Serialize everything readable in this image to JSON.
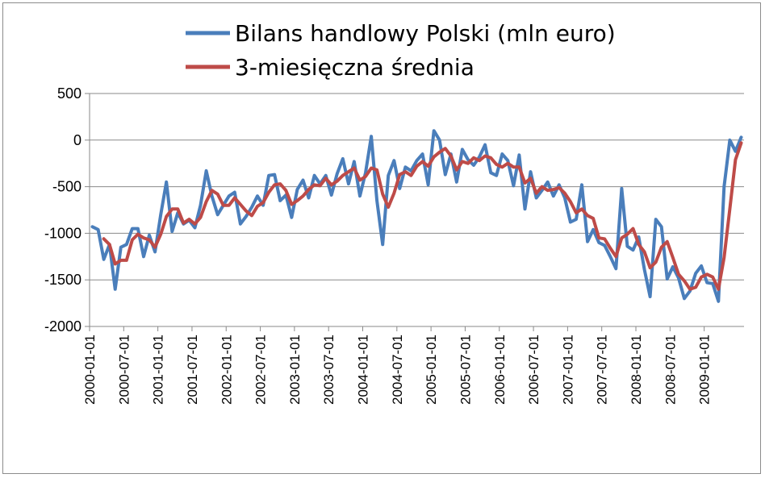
{
  "chart_data": {
    "type": "line",
    "title": "",
    "xlabel": "",
    "ylabel": "",
    "ylim": [
      -2000,
      500
    ],
    "y_ticks": [
      500,
      0,
      -500,
      -1000,
      -1500,
      -2000
    ],
    "y_tick_labels": [
      "500",
      "0",
      "-500",
      "-1000",
      "-1500",
      "-2000"
    ],
    "x_tick_labels": [
      "2000-01-01",
      "2000-07-01",
      "2001-01-01",
      "2001-07-01",
      "2002-01-01",
      "2002-07-01",
      "2003-01-01",
      "2003-07-01",
      "2004-01-01",
      "2004-07-01",
      "2005-01-01",
      "2005-07-01",
      "2006-01-01",
      "2006-07-01",
      "2007-01-01",
      "2007-07-01",
      "2008-01-01",
      "2008-07-01",
      "2009-01-01"
    ],
    "x_start": "2000-01",
    "x_frequency": "monthly",
    "grid": true,
    "legend_position": "top",
    "series": [
      {
        "name": "Bilans handlowy Polski (mln euro)",
        "color": "#4a7ebb",
        "values": [
          -930,
          -960,
          -1280,
          -1120,
          -1600,
          -1150,
          -1120,
          -950,
          -950,
          -1250,
          -1020,
          -1200,
          -800,
          -450,
          -980,
          -780,
          -900,
          -860,
          -940,
          -700,
          -330,
          -600,
          -800,
          -700,
          -600,
          -560,
          -900,
          -820,
          -720,
          -600,
          -700,
          -380,
          -370,
          -650,
          -590,
          -830,
          -530,
          -430,
          -620,
          -380,
          -470,
          -380,
          -590,
          -360,
          -200,
          -470,
          -230,
          -600,
          -350,
          40,
          -650,
          -1120,
          -380,
          -220,
          -520,
          -290,
          -330,
          -220,
          -150,
          -480,
          100,
          0,
          -370,
          -150,
          -450,
          -100,
          -210,
          -270,
          -180,
          -50,
          -350,
          -380,
          -150,
          -220,
          -490,
          -160,
          -740,
          -340,
          -620,
          -540,
          -450,
          -600,
          -480,
          -620,
          -880,
          -850,
          -480,
          -1090,
          -960,
          -1100,
          -1130,
          -1250,
          -1380,
          -520,
          -1140,
          -1180,
          -1040,
          -1390,
          -1680,
          -850,
          -930,
          -1490,
          -1360,
          -1480,
          -1700,
          -1620,
          -1430,
          -1350,
          -1530,
          -1540,
          -1730,
          -500,
          0,
          -120,
          30
        ]
      },
      {
        "name": "3-miesięczna średnia",
        "color": "#be4b48",
        "values": [
          null,
          null,
          -1060,
          -1120,
          -1330,
          -1290,
          -1290,
          -1070,
          -1010,
          -1050,
          -1070,
          -1150,
          -1010,
          -820,
          -740,
          -740,
          -890,
          -850,
          -900,
          -830,
          -660,
          -540,
          -580,
          -700,
          -700,
          -620,
          -690,
          -760,
          -810,
          -710,
          -670,
          -560,
          -480,
          -470,
          -540,
          -690,
          -650,
          -600,
          -530,
          -480,
          -490,
          -410,
          -480,
          -440,
          -380,
          -340,
          -300,
          -430,
          -390,
          -300,
          -320,
          -580,
          -720,
          -570,
          -370,
          -340,
          -380,
          -280,
          -230,
          -280,
          -180,
          -130,
          -90,
          -170,
          -320,
          -230,
          -250,
          -190,
          -220,
          -170,
          -190,
          -260,
          -290,
          -250,
          -290,
          -290,
          -460,
          -410,
          -570,
          -500,
          -540,
          -530,
          -510,
          -570,
          -660,
          -780,
          -740,
          -810,
          -840,
          -1050,
          -1060,
          -1160,
          -1250,
          -1050,
          -1010,
          -950,
          -1120,
          -1200,
          -1370,
          -1310,
          -1150,
          -1090,
          -1260,
          -1440,
          -1510,
          -1600,
          -1580,
          -1470,
          -1440,
          -1470,
          -1600,
          -1260,
          -740,
          -210,
          -30
        ]
      }
    ]
  }
}
